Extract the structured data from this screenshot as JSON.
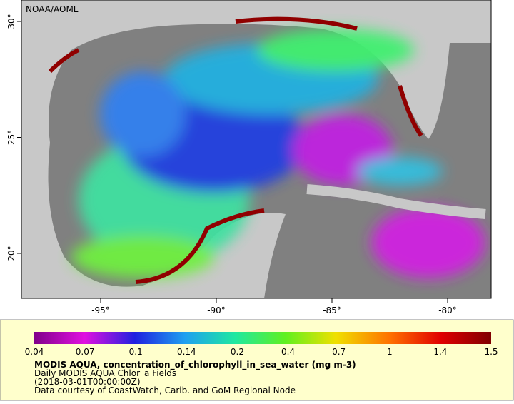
{
  "map": {
    "credit": "NOAA/AOML",
    "lon_ticks": [
      "-95°",
      "-90°",
      "-85°",
      "-80°"
    ],
    "lat_ticks": [
      "30°",
      "25°",
      "20°"
    ],
    "colorbar": {
      "labels": [
        "0.04",
        "0.07",
        "0.1",
        "0.14",
        "0.2",
        "0.4",
        "0.7",
        "1",
        "1.4",
        "1.5"
      ]
    },
    "caption": {
      "title": "MODIS AQUA, concentration_of_chlorophyll_in_sea_water (mg m-3)",
      "lines": [
        "Daily MODIS AQUA Chlor_a Fields",
        "(2018-03-01T00:00:00Z)",
        "Data courtesy of CoastWatch, Carib. and GoM Regional Node"
      ]
    }
  }
}
